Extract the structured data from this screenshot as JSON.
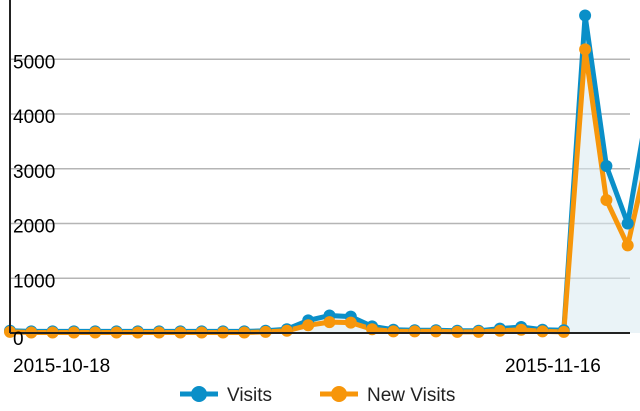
{
  "chart_data": {
    "type": "line",
    "title": "",
    "xlabel": "",
    "ylabel": "",
    "ylim": [
      0,
      5900
    ],
    "yticks": [
      0,
      1000,
      2000,
      3000,
      4000,
      5000
    ],
    "x_tick_labels": [
      {
        "label": "2015-10-18",
        "index": 1
      },
      {
        "label": "2015-11-16",
        "index": 27
      }
    ],
    "grid": true,
    "legend_position": "bottom",
    "series": [
      {
        "name": "Visits",
        "color": "#0a8fc8",
        "values": [
          40,
          30,
          30,
          30,
          30,
          30,
          30,
          30,
          30,
          30,
          30,
          30,
          40,
          70,
          230,
          320,
          300,
          120,
          60,
          50,
          50,
          40,
          40,
          80,
          110,
          60,
          50,
          5800,
          3050,
          2000,
          4250
        ]
      },
      {
        "name": "New Visits",
        "color": "#f7960a",
        "values": [
          20,
          10,
          10,
          10,
          10,
          10,
          10,
          10,
          10,
          10,
          10,
          10,
          20,
          40,
          140,
          200,
          190,
          70,
          30,
          30,
          30,
          20,
          20,
          40,
          60,
          30,
          20,
          5180,
          2430,
          1600,
          3330
        ]
      }
    ]
  }
}
